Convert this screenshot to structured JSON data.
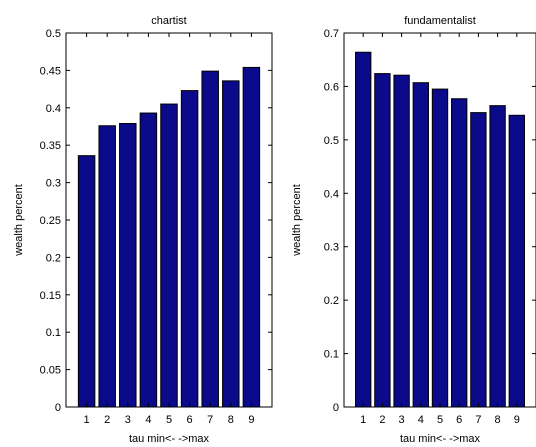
{
  "chart_data": [
    {
      "type": "bar",
      "title": "chartist",
      "xlabel": "tau min<- ->max",
      "ylabel": "wealth percent",
      "categories": [
        "1",
        "2",
        "3",
        "4",
        "5",
        "6",
        "7",
        "8",
        "9"
      ],
      "values": [
        0.336,
        0.376,
        0.379,
        0.393,
        0.405,
        0.423,
        0.449,
        0.436,
        0.454
      ],
      "ylim": [
        0,
        0.5
      ],
      "yticks": [
        0,
        0.05,
        0.1,
        0.15,
        0.2,
        0.25,
        0.3,
        0.35,
        0.4,
        0.45,
        0.5
      ],
      "ytick_labels": [
        "0",
        "0.05",
        "0.1",
        "0.15",
        "0.2",
        "0.25",
        "0.3",
        "0.35",
        "0.4",
        "0.45",
        "0.5"
      ],
      "bar_color": "#0a0a8a",
      "grid": false
    },
    {
      "type": "bar",
      "title": "fundamentalist",
      "xlabel": "tau min<- ->max",
      "ylabel": "wealth percent",
      "categories": [
        "1",
        "2",
        "3",
        "4",
        "5",
        "6",
        "7",
        "8",
        "9"
      ],
      "values": [
        0.664,
        0.624,
        0.621,
        0.607,
        0.595,
        0.577,
        0.551,
        0.564,
        0.546
      ],
      "ylim": [
        0,
        0.7
      ],
      "yticks": [
        0,
        0.1,
        0.2,
        0.3,
        0.4,
        0.5,
        0.6,
        0.7
      ],
      "ytick_labels": [
        "0",
        "0.1",
        "0.2",
        "0.3",
        "0.4",
        "0.5",
        "0.6",
        "0.7"
      ],
      "bar_color": "#0a0a8a",
      "grid": false
    }
  ]
}
